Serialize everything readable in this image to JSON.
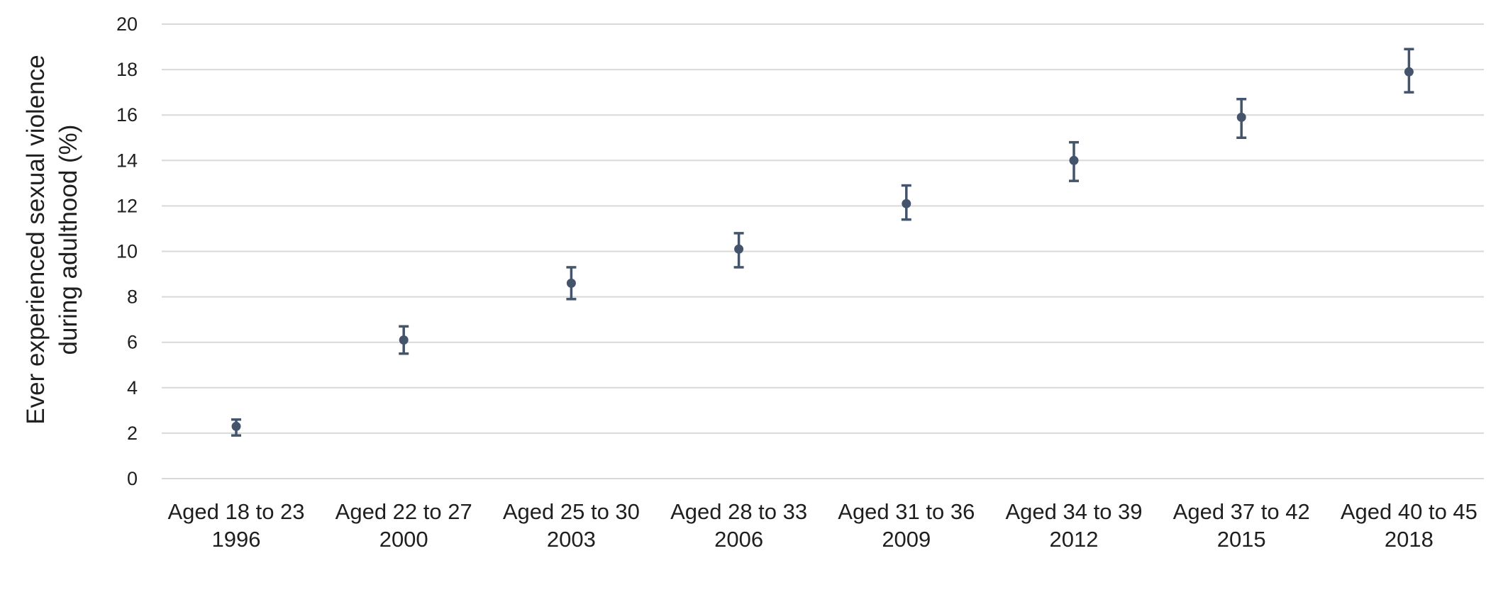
{
  "chart_data": {
    "type": "scatter",
    "title": "",
    "xlabel": "",
    "ylabel_lines": [
      "Ever experienced sexual violence",
      "during adulthood (%)"
    ],
    "categories": [
      {
        "line1": "Aged 18 to 23",
        "line2": "1996"
      },
      {
        "line1": "Aged 22 to 27",
        "line2": "2000"
      },
      {
        "line1": "Aged 25 to 30",
        "line2": "2003"
      },
      {
        "line1": "Aged 28 to 33",
        "line2": "2006"
      },
      {
        "line1": "Aged 31 to 36",
        "line2": "2009"
      },
      {
        "line1": "Aged 34 to 39",
        "line2": "2012"
      },
      {
        "line1": "Aged 37 to 42",
        "line2": "2015"
      },
      {
        "line1": "Aged 40 to 45",
        "line2": "2018"
      }
    ],
    "series": [
      {
        "values": [
          2.3,
          6.1,
          8.6,
          10.1,
          12.1,
          14.0,
          15.9,
          17.9
        ],
        "lower": [
          1.9,
          5.5,
          7.9,
          9.3,
          11.4,
          13.1,
          15.0,
          17.0
        ],
        "upper": [
          2.6,
          6.7,
          9.3,
          10.8,
          12.9,
          14.8,
          16.7,
          18.9
        ]
      }
    ],
    "ylim": [
      0,
      20
    ],
    "yticks": [
      "0",
      "2",
      "4",
      "6",
      "8",
      "10",
      "12",
      "14",
      "16",
      "18",
      "20"
    ],
    "grid": true,
    "legend": "none",
    "colors": {
      "marker": "#44546a",
      "gridline": "#d9d9d9",
      "text": "#1f1f1f"
    }
  }
}
